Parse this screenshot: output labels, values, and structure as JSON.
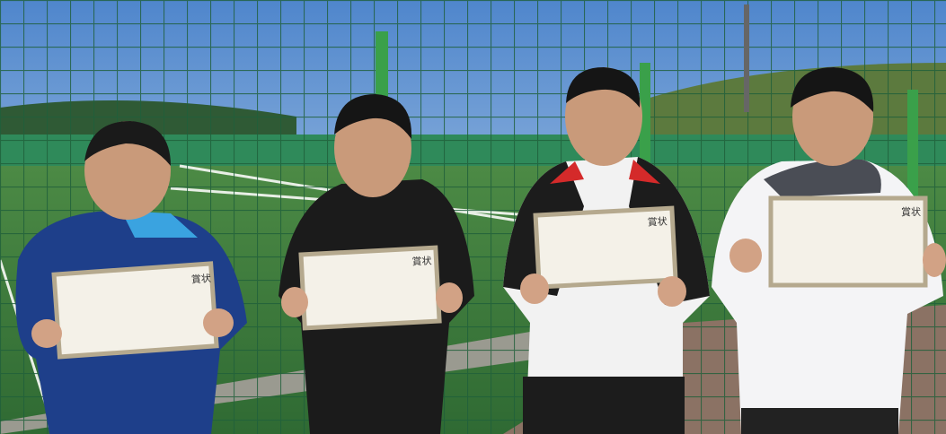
{
  "certificates": [
    {
      "title": "賞状"
    },
    {
      "title": "賞状"
    },
    {
      "title": "賞状"
    },
    {
      "title": "賞状"
    }
  ]
}
